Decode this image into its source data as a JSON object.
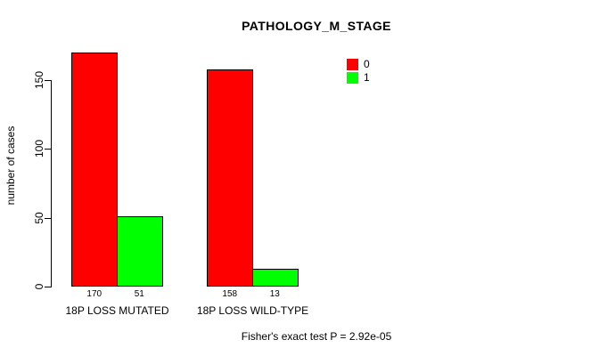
{
  "chart_data": {
    "type": "bar",
    "title": "PATHOLOGY_M_STAGE",
    "ylabel": "number of cases",
    "xlabel": "",
    "ylim": [
      0,
      150
    ],
    "yticks": [
      0,
      50,
      100,
      150
    ],
    "categories": [
      "18P LOSS MUTATED",
      "18P LOSS WILD-TYPE"
    ],
    "series": [
      {
        "name": "0",
        "color": "#ff0000",
        "values": [
          170,
          158
        ]
      },
      {
        "name": "1",
        "color": "#00ff00",
        "values": [
          51,
          13
        ]
      }
    ],
    "bar_value_labels": [
      [
        "170",
        "51"
      ],
      [
        "158",
        "13"
      ]
    ],
    "legend_position": "top-right",
    "grid": false,
    "footnote": "Fisher's exact test P = 2.92e-05",
    "colors": {
      "background": "#ffffff",
      "axis": "#000000",
      "text": "#000000",
      "bar_border": "#000000",
      "series_0": "#ff0000",
      "series_1": "#00ff00"
    }
  }
}
